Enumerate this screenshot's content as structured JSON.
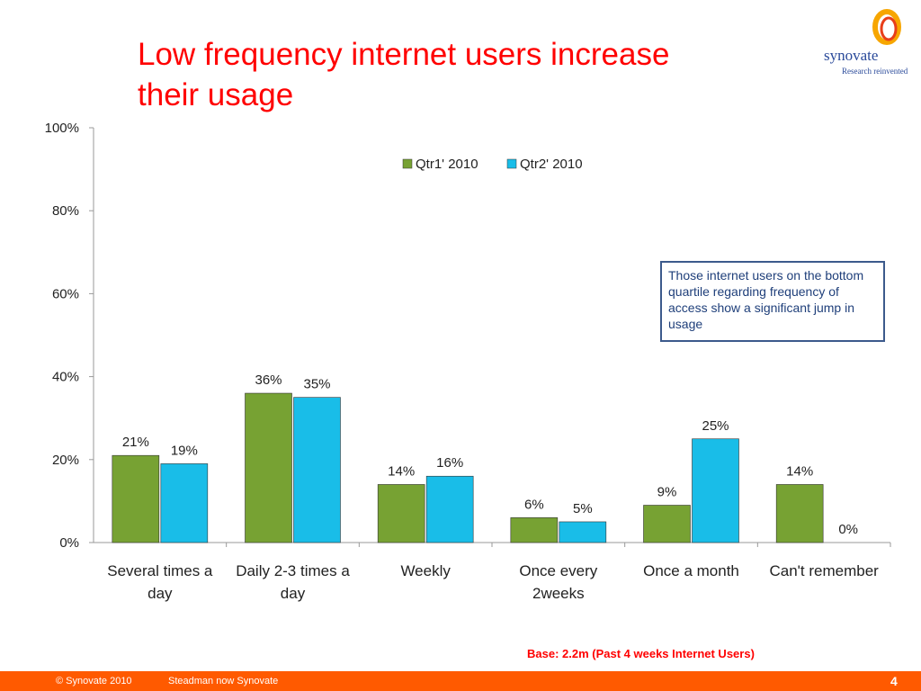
{
  "slide": {
    "title_line1": "Low frequency internet users increase",
    "title_line2": "their usage",
    "callout": "Those internet users on the bottom quartile regarding frequency of access show a significant jump in usage",
    "base_note": "Base: 2.2m (Past 4 weeks Internet Users)",
    "page_number": "4"
  },
  "logo": {
    "name": "synovate",
    "tagline": "Research reinvented",
    "colors": [
      "#f7a600",
      "#e83e1a"
    ]
  },
  "footer": {
    "copyright": "© Synovate 2010",
    "note": "Steadman now Synovate",
    "color": "#ff5a00"
  },
  "chart_data": {
    "type": "bar",
    "categories": [
      [
        "Several times a",
        "day"
      ],
      [
        "Daily 2-3 times a",
        "day"
      ],
      [
        "Weekly"
      ],
      [
        "Once every",
        "2weeks"
      ],
      [
        "Once a month"
      ],
      [
        "Can't remember"
      ]
    ],
    "series": [
      {
        "name": "Qtr1' 2010",
        "values": [
          21,
          36,
          14,
          6,
          9,
          14
        ],
        "labels": [
          "21%",
          "36%",
          "14%",
          "6%",
          "9%",
          "14%"
        ],
        "color": "#77a233"
      },
      {
        "name": "Qtr2' 2010",
        "values": [
          19,
          35,
          16,
          5,
          25,
          0
        ],
        "labels": [
          "19%",
          "35%",
          "16%",
          "5%",
          "25%",
          "0%"
        ],
        "color": "#19bde8"
      }
    ],
    "ylim": [
      0,
      100
    ],
    "yticks": [
      "0%",
      "20%",
      "40%",
      "60%",
      "80%",
      "100%"
    ],
    "legend": "top-center",
    "grid": false
  }
}
